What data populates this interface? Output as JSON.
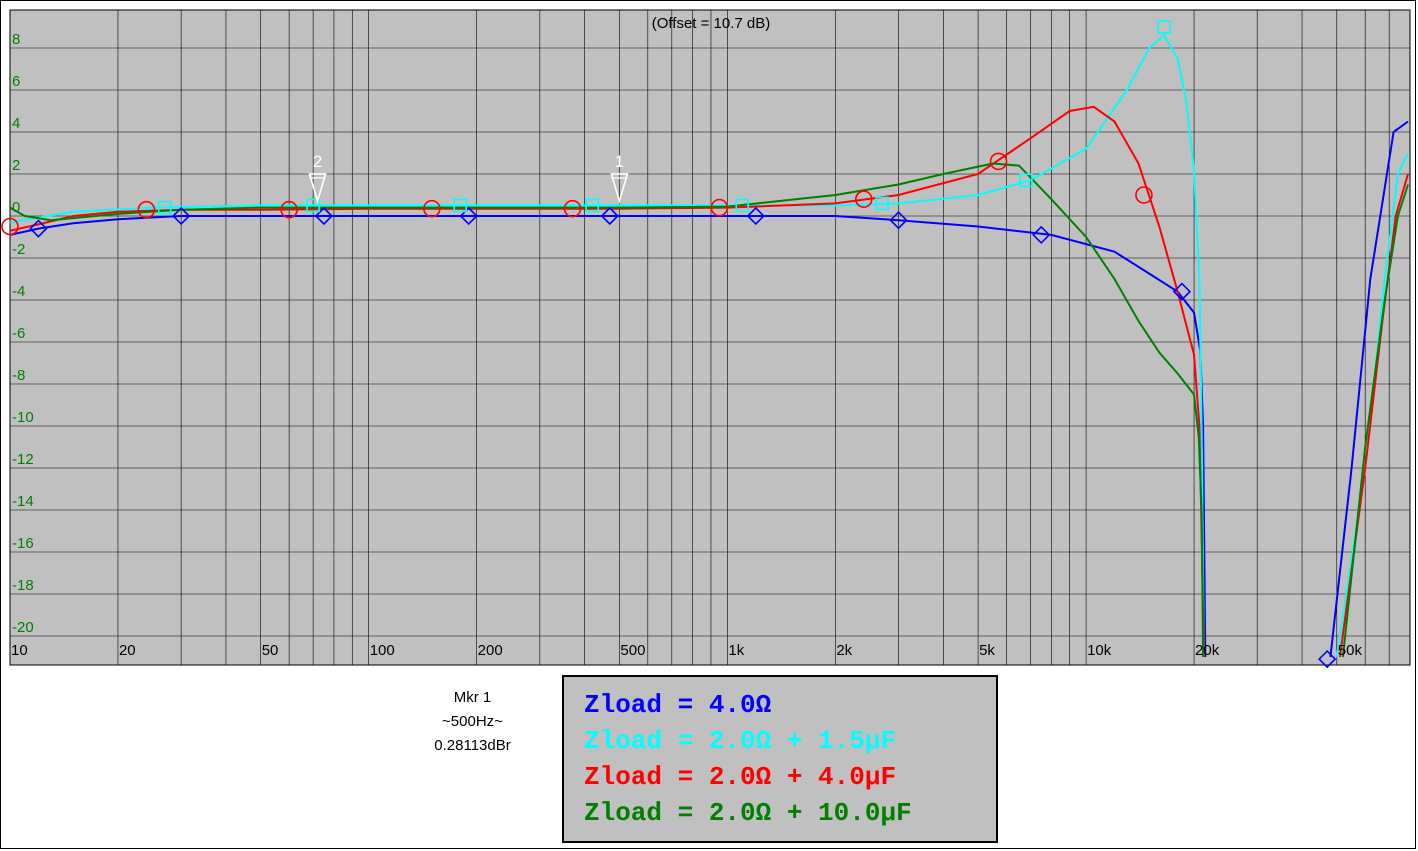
{
  "chart_data": {
    "type": "line",
    "x_scale": "log",
    "xlim": [
      10,
      80000
    ],
    "ylim": [
      -20,
      10
    ],
    "grid": true,
    "annotation": "(Offset = 10.7 dB)",
    "y_ticks": [
      {
        "value": 8,
        "label": "8"
      },
      {
        "value": 6,
        "label": "6"
      },
      {
        "value": 4,
        "label": "4"
      },
      {
        "value": 2,
        "label": "2"
      },
      {
        "value": 0,
        "label": "0"
      },
      {
        "value": -2,
        "label": "-2"
      },
      {
        "value": -4,
        "label": "-4"
      },
      {
        "value": -6,
        "label": "-6"
      },
      {
        "value": -8,
        "label": "-8"
      },
      {
        "value": -10,
        "label": "-10"
      },
      {
        "value": -12,
        "label": "-12"
      },
      {
        "value": -14,
        "label": "-14"
      },
      {
        "value": -16,
        "label": "-16"
      },
      {
        "value": -18,
        "label": "-18"
      },
      {
        "value": -20,
        "label": "-20"
      }
    ],
    "x_ticks": [
      {
        "value": 10,
        "label": "10"
      },
      {
        "value": 20,
        "label": "20"
      },
      {
        "value": 50,
        "label": "50"
      },
      {
        "value": 100,
        "label": "100"
      },
      {
        "value": 200,
        "label": "200"
      },
      {
        "value": 500,
        "label": "500"
      },
      {
        "value": 1000,
        "label": "1k"
      },
      {
        "value": 2000,
        "label": "2k"
      },
      {
        "value": 5000,
        "label": "5k"
      },
      {
        "value": 10000,
        "label": "10k"
      },
      {
        "value": 20000,
        "label": "20k"
      },
      {
        "value": 50000,
        "label": "50k"
      }
    ],
    "series": [
      {
        "name": "Zload = 4.0Ω",
        "color": "#0000ff",
        "symbol": "diamond",
        "points": [
          [
            10,
            -0.9
          ],
          [
            12,
            -0.6
          ],
          [
            15,
            -0.35
          ],
          [
            20,
            -0.15
          ],
          [
            30,
            0
          ],
          [
            50,
            0
          ],
          [
            100,
            0
          ],
          [
            200,
            0
          ],
          [
            500,
            0
          ],
          [
            1000,
            0
          ],
          [
            2000,
            0
          ],
          [
            3000,
            -0.2
          ],
          [
            5000,
            -0.5
          ],
          [
            8000,
            -0.9
          ],
          [
            12000,
            -1.7
          ],
          [
            18000,
            -3.6
          ],
          [
            20000,
            -4.6
          ],
          [
            20800,
            -6.4
          ],
          [
            21200,
            -10
          ],
          [
            21500,
            -21
          ]
        ],
        "tail": [
          [
            48000,
            -21
          ],
          [
            55000,
            -12
          ],
          [
            62000,
            -3
          ],
          [
            72000,
            4
          ],
          [
            79000,
            4.5
          ]
        ],
        "markers": [
          [
            12,
            -0.6
          ],
          [
            30,
            0
          ],
          [
            75,
            0
          ],
          [
            190,
            0
          ],
          [
            470,
            0
          ],
          [
            1200,
            0
          ],
          [
            3000,
            -0.2
          ],
          [
            7500,
            -0.9
          ],
          [
            18500,
            -3.6
          ],
          [
            47000,
            -21.1
          ]
        ]
      },
      {
        "name": "Zload = 2.0Ω + 1.5μF",
        "color": "#00ffff",
        "symbol": "square",
        "points": [
          [
            10,
            -0.3
          ],
          [
            15,
            0.2
          ],
          [
            25,
            0.4
          ],
          [
            50,
            0.5
          ],
          [
            100,
            0.5
          ],
          [
            200,
            0.5
          ],
          [
            500,
            0.5
          ],
          [
            1000,
            0.5
          ],
          [
            2000,
            0.5
          ],
          [
            3000,
            0.6
          ],
          [
            5000,
            1.0
          ],
          [
            7000,
            1.7
          ],
          [
            10000,
            3.2
          ],
          [
            13000,
            6.0
          ],
          [
            15000,
            8.0
          ],
          [
            16500,
            8.6
          ],
          [
            18000,
            7.5
          ],
          [
            19000,
            5.5
          ],
          [
            20000,
            2.2
          ],
          [
            20700,
            -3
          ],
          [
            21000,
            -10
          ],
          [
            21300,
            -21
          ]
        ],
        "tail": [
          [
            50000,
            -21
          ],
          [
            60000,
            -12
          ],
          [
            68000,
            -3
          ],
          [
            74000,
            2
          ],
          [
            79000,
            3
          ]
        ],
        "markers": [
          [
            27,
            0.4
          ],
          [
            70,
            0.5
          ],
          [
            180,
            0.5
          ],
          [
            420,
            0.5
          ],
          [
            1100,
            0.5
          ],
          [
            2700,
            0.6
          ],
          [
            6800,
            1.7
          ],
          [
            16500,
            9.0
          ]
        ]
      },
      {
        "name": "Zload = 2.0Ω + 4.0μF",
        "color": "#ff0000",
        "symbol": "circle",
        "points": [
          [
            10,
            -0.7
          ],
          [
            12,
            -0.4
          ],
          [
            15,
            0
          ],
          [
            20,
            0.2
          ],
          [
            30,
            0.3
          ],
          [
            50,
            0.3
          ],
          [
            100,
            0.35
          ],
          [
            200,
            0.35
          ],
          [
            500,
            0.35
          ],
          [
            1000,
            0.4
          ],
          [
            2000,
            0.6
          ],
          [
            3000,
            1.0
          ],
          [
            5000,
            2.0
          ],
          [
            7000,
            3.7
          ],
          [
            9000,
            5.0
          ],
          [
            10500,
            5.2
          ],
          [
            12000,
            4.5
          ],
          [
            14000,
            2.5
          ],
          [
            16000,
            -0.5
          ],
          [
            18000,
            -3.6
          ],
          [
            20000,
            -6.6
          ],
          [
            20700,
            -10
          ],
          [
            21000,
            -15
          ],
          [
            21300,
            -21
          ]
        ],
        "tail": [
          [
            51000,
            -21
          ],
          [
            60000,
            -12
          ],
          [
            67000,
            -5
          ],
          [
            73000,
            0
          ],
          [
            79000,
            2
          ]
        ],
        "markers": [
          [
            10,
            -0.5
          ],
          [
            24,
            0.3
          ],
          [
            60,
            0.3
          ],
          [
            150,
            0.35
          ],
          [
            370,
            0.35
          ],
          [
            950,
            0.4
          ],
          [
            2400,
            0.8
          ],
          [
            5700,
            2.6
          ],
          [
            14500,
            1.0
          ]
        ]
      },
      {
        "name": "Zload = 2.0Ω + 10.0μF",
        "color": "#008000",
        "symbol": "none",
        "points": [
          [
            10,
            0.4
          ],
          [
            11,
            0
          ],
          [
            13,
            -0.2
          ],
          [
            20,
            0.1
          ],
          [
            30,
            0.3
          ],
          [
            50,
            0.4
          ],
          [
            100,
            0.4
          ],
          [
            200,
            0.4
          ],
          [
            500,
            0.4
          ],
          [
            1000,
            0.45
          ],
          [
            2000,
            1.0
          ],
          [
            3000,
            1.5
          ],
          [
            4000,
            2.0
          ],
          [
            5500,
            2.5
          ],
          [
            6500,
            2.4
          ],
          [
            8000,
            0.8
          ],
          [
            10000,
            -1
          ],
          [
            12000,
            -3
          ],
          [
            14000,
            -5
          ],
          [
            16000,
            -6.5
          ],
          [
            18000,
            -7.5
          ],
          [
            20000,
            -8.5
          ],
          [
            20600,
            -10.5
          ],
          [
            21000,
            -14
          ],
          [
            21200,
            -21
          ]
        ],
        "tail": [
          [
            52000,
            -21
          ],
          [
            60000,
            -11
          ],
          [
            68000,
            -4
          ],
          [
            74000,
            0
          ],
          [
            79000,
            1.5
          ]
        ],
        "markers": []
      }
    ],
    "reference_markers": [
      {
        "label": "2",
        "x": 72,
        "y": 1.0
      },
      {
        "label": "1",
        "x": 500,
        "y": 1.0
      }
    ]
  },
  "readout": {
    "marker": "Mkr 1",
    "frequency": "~500Hz~",
    "value": "0.28113dBr"
  },
  "legend": {
    "entries": [
      {
        "label": "Zload = 4.0Ω",
        "color": "#0000ff"
      },
      {
        "label": "Zload = 2.0Ω + 1.5μF",
        "color": "#00ffff"
      },
      {
        "label": "Zload = 2.0Ω + 4.0μF",
        "color": "#ff0000"
      },
      {
        "label": "Zload = 2.0Ω + 10.0μF",
        "color": "#008000"
      }
    ]
  }
}
